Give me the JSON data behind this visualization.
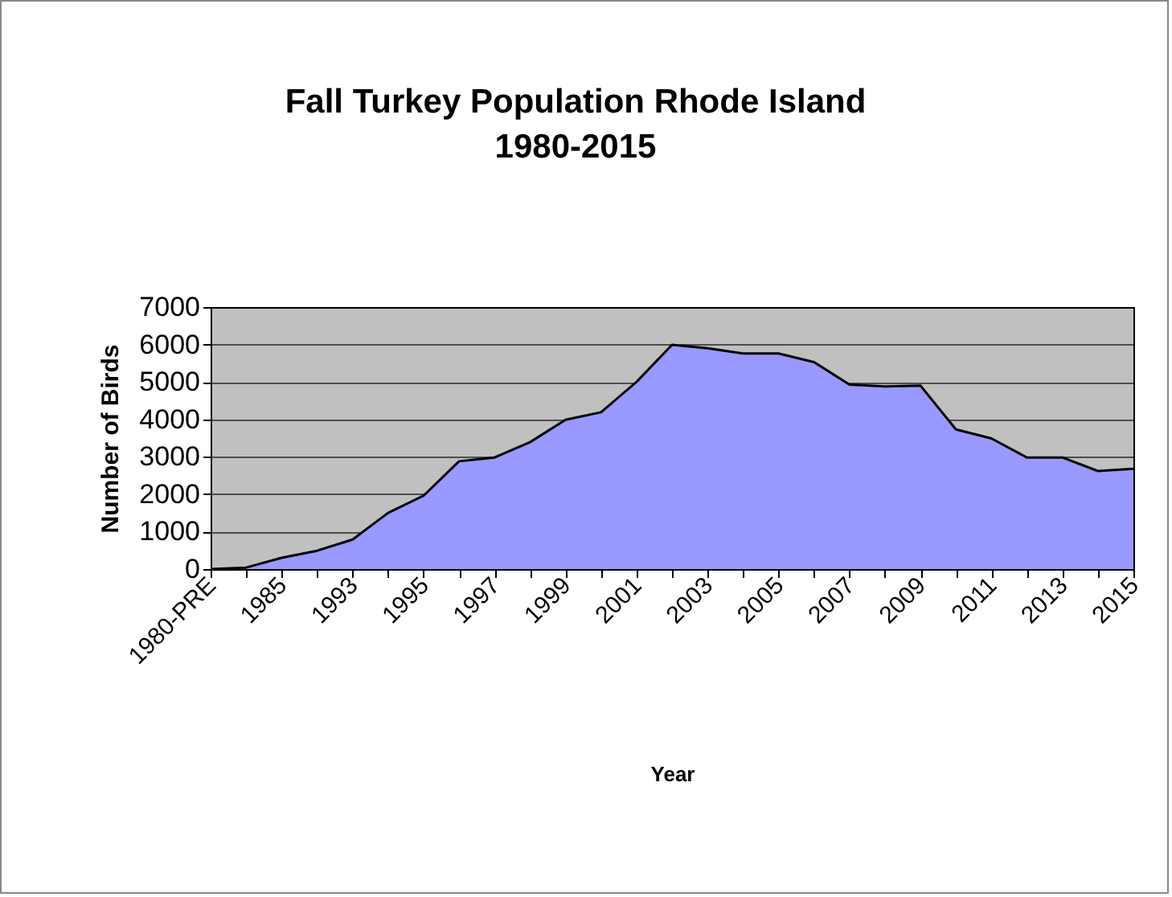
{
  "chart_data": {
    "type": "area",
    "title": "Fall Turkey Population Rhode Island 1980-2015",
    "xlabel": "Year",
    "ylabel": "Number of Birds",
    "categories": [
      "1980-PRE",
      null,
      "1985",
      null,
      "1993",
      null,
      "1995",
      null,
      "1997",
      null,
      "1999",
      null,
      "2001",
      null,
      "2003",
      null,
      "2005",
      null,
      "2007",
      null,
      "2009",
      null,
      "2011",
      null,
      "2013",
      null,
      "2015"
    ],
    "series": [
      {
        "color": "#9999ff",
        "values": [
          0,
          40,
          300,
          490,
          790,
          1500,
          1960,
          2880,
          2980,
          3390,
          3990,
          4190,
          5000,
          5990,
          5900,
          5760,
          5760,
          5530,
          4930,
          4880,
          4900,
          3730,
          3490,
          2980,
          2980,
          2620,
          2680
        ]
      }
    ],
    "ylim": [
      0,
      7000
    ],
    "yticks": [
      0,
      1000,
      2000,
      3000,
      4000,
      5000,
      6000,
      7000
    ],
    "grid": "y"
  }
}
